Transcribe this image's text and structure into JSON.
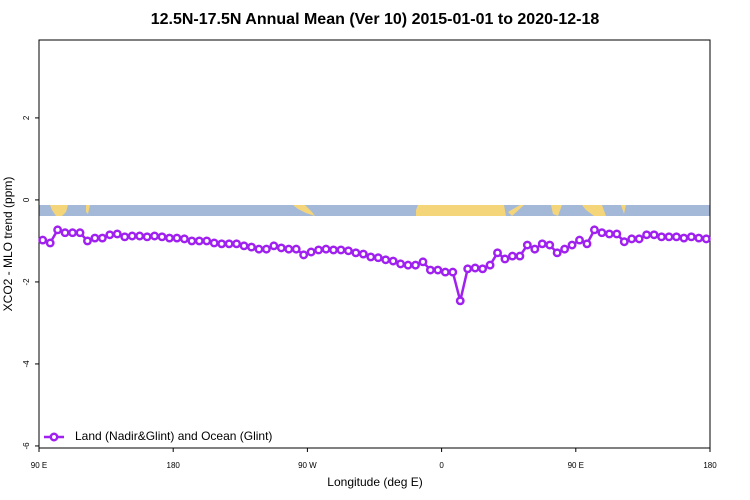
{
  "chart_data": {
    "type": "line",
    "title": "12.5N-17.5N Annual Mean (Ver 10)   2015-01-01 to 2020-12-18",
    "x_label": "Longitude (deg E)",
    "y_label": "XCO2 - MLO trend (ppm)",
    "xlim": [
      90,
      540
    ],
    "ylim": [
      -6.05,
      3.9
    ],
    "xticks": [
      {
        "value": 90,
        "label": "90 E"
      },
      180,
      {
        "value": 270,
        "label": "90 W"
      },
      {
        "value": 360,
        "label": "0"
      },
      {
        "value": 450,
        "label": "90 E"
      },
      {
        "value": 540,
        "label": "180"
      }
    ],
    "yticks": [
      -6,
      -4,
      -2,
      0,
      2
    ],
    "legend": "bottom-left",
    "x": [
      92.5,
      97.5,
      102.5,
      107.5,
      112.5,
      117.5,
      122.5,
      127.5,
      132.5,
      137.5,
      142.5,
      147.5,
      152.5,
      157.5,
      162.5,
      167.5,
      172.5,
      177.5,
      182.5,
      187.5,
      192.5,
      197.5,
      202.5,
      207.5,
      212.5,
      217.5,
      222.5,
      227.5,
      232.5,
      237.5,
      242.5,
      247.5,
      252.5,
      257.5,
      262.5,
      267.5,
      272.5,
      277.5,
      282.5,
      287.5,
      292.5,
      297.5,
      302.5,
      307.5,
      312.5,
      317.5,
      322.5,
      327.5,
      332.5,
      337.5,
      342.5,
      347.5,
      352.5,
      357.5,
      362.5,
      367.5,
      372.5,
      377.5,
      382.5,
      387.5,
      392.5,
      397.5,
      402.5,
      407.5,
      412.5,
      417.5,
      422.5,
      427.5,
      432.5,
      437.5,
      442.5,
      447.5,
      452.5,
      457.5,
      462.5,
      467.5,
      472.5,
      477.5,
      482.5,
      487.5,
      492.5,
      497.5,
      502.5,
      507.5,
      512.5,
      517.5,
      522.5,
      527.5,
      532.5,
      537.5
    ],
    "series": [
      {
        "name": "Land (Nadir&Glint) and Ocean (Glint)",
        "color": "#a020f0",
        "values": [
          -0.98,
          -1.05,
          -0.73,
          -0.8,
          -0.8,
          -0.8,
          -1.0,
          -0.93,
          -0.93,
          -0.85,
          -0.83,
          -0.9,
          -0.88,
          -0.88,
          -0.9,
          -0.88,
          -0.9,
          -0.93,
          -0.93,
          -0.95,
          -1.0,
          -1.0,
          -1.0,
          -1.05,
          -1.07,
          -1.07,
          -1.07,
          -1.12,
          -1.15,
          -1.2,
          -1.2,
          -1.12,
          -1.17,
          -1.2,
          -1.2,
          -1.34,
          -1.27,
          -1.22,
          -1.2,
          -1.22,
          -1.22,
          -1.24,
          -1.29,
          -1.32,
          -1.39,
          -1.41,
          -1.46,
          -1.49,
          -1.56,
          -1.59,
          -1.59,
          -1.51,
          -1.71,
          -1.71,
          -1.76,
          -1.76,
          -2.46,
          -1.68,
          -1.66,
          -1.68,
          -1.59,
          -1.29,
          -1.44,
          -1.37,
          -1.37,
          -1.1,
          -1.2,
          -1.07,
          -1.1,
          -1.29,
          -1.2,
          -1.1,
          -0.98,
          -1.07,
          -0.73,
          -0.8,
          -0.83,
          -0.83,
          -1.02,
          -0.95,
          -0.95,
          -0.85,
          -0.85,
          -0.9,
          -0.9,
          -0.9,
          -0.93,
          -0.9,
          -0.93,
          -0.95
        ]
      }
    ]
  }
}
